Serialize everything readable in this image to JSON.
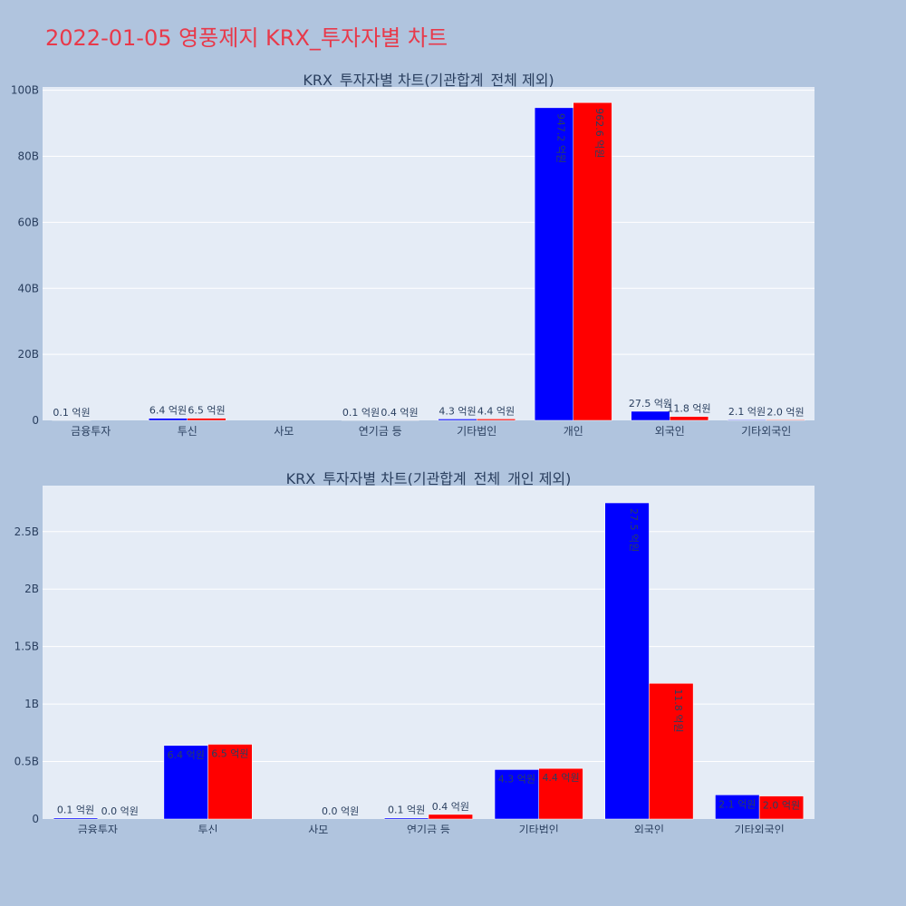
{
  "page_title": "2022-01-05 영풍제지 KRX_투자자별 차트",
  "colors": {
    "buy": "#0000ff",
    "sell": "#ff0000",
    "plot_bg": "#e5ecf6",
    "page_bg": "#b0c4de",
    "title": "#e8394a"
  },
  "chart_data": [
    {
      "type": "bar",
      "title": "KRX_투자자별 차트(기관합계_전체 제외)",
      "categories": [
        "금융투자",
        "투신",
        "사모",
        "연기금 등",
        "기타법인",
        "개인",
        "외국인",
        "기타외국인"
      ],
      "series": [
        {
          "values": [
            0.01,
            0.64,
            0,
            0.01,
            0.43,
            94.72,
            2.75,
            0.21
          ],
          "labels": [
            "0.1 억원",
            "6.4 억원",
            "",
            "0.1 억원",
            "4.3 억원",
            "947.2 억원",
            "27.5 억원",
            "2.1 억원"
          ]
        },
        {
          "values": [
            0,
            0.65,
            0,
            0.04,
            0.44,
            96.26,
            1.18,
            0.2
          ],
          "labels": [
            "",
            "6.5 억원",
            "",
            "0.4 억원",
            "4.4 억원",
            "962.6 억원",
            "11.8 억원",
            "2.0 억원"
          ]
        }
      ],
      "yticks": [
        "0",
        "20B",
        "40B",
        "60B",
        "80B",
        "100B"
      ],
      "ytick_values": [
        0,
        20,
        40,
        60,
        80,
        100
      ],
      "ylim": [
        0,
        101
      ],
      "grid": true
    },
    {
      "type": "bar",
      "title": "KRX_투자자별 차트(기관합계_전체_개인 제외)",
      "categories": [
        "금융투자",
        "투신",
        "사모",
        "연기금 등",
        "기타법인",
        "외국인",
        "기타외국인"
      ],
      "series": [
        {
          "values": [
            0.01,
            0.64,
            0,
            0.01,
            0.43,
            2.75,
            0.21
          ],
          "labels": [
            "0.1 억원",
            "6.4 억원",
            "",
            "0.1 억원",
            "4.3 억원",
            "27.5 억원",
            "2.1 억원"
          ]
        },
        {
          "values": [
            0.0,
            0.65,
            0,
            0.04,
            0.44,
            1.18,
            0.2
          ],
          "labels": [
            "0.0 억원",
            "6.5 억원",
            "0.0 억원",
            "0.4 억원",
            "4.4 억원",
            "11.8 억원",
            "2.0 억원"
          ]
        }
      ],
      "yticks": [
        "0",
        "0.5B",
        "1B",
        "1.5B",
        "2B",
        "2.5B"
      ],
      "ytick_values": [
        0,
        0.5,
        1,
        1.5,
        2,
        2.5
      ],
      "ylim": [
        0,
        2.9
      ],
      "grid": true
    }
  ]
}
